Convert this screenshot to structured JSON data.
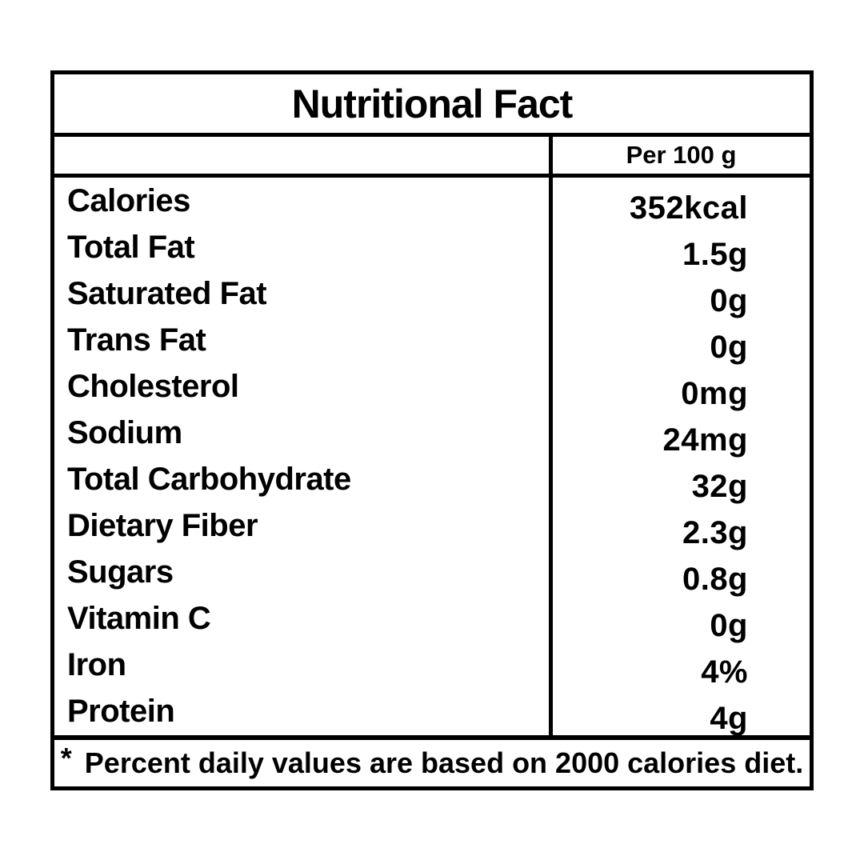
{
  "title": "Nutritional Fact",
  "header": {
    "nutrient_column_label": "",
    "serving_label": "Per 100 g"
  },
  "rows": [
    {
      "label": "Calories",
      "value": "352kcal"
    },
    {
      "label": "Total Fat",
      "value": "1.5g"
    },
    {
      "label": "Saturated Fat",
      "value": "0g"
    },
    {
      "label": "Trans Fat",
      "value": "0g"
    },
    {
      "label": "Cholesterol",
      "value": "0mg"
    },
    {
      "label": "Sodium",
      "value": "24mg"
    },
    {
      "label": "Total Carbohydrate",
      "value": "32g"
    },
    {
      "label": "Dietary Fiber",
      "value": "2.3g"
    },
    {
      "label": "Sugars",
      "value": "0.8g"
    },
    {
      "label": "Vitamin C",
      "value": "0g"
    },
    {
      "label": "Iron",
      "value": "4%"
    },
    {
      "label": "Protein",
      "value": "4g"
    }
  ],
  "footnote": {
    "marker": "*",
    "text": "Percent daily values are based on 2000 calories diet."
  },
  "colors": {
    "border": "#000000",
    "text": "#000000",
    "background": "#ffffff"
  }
}
